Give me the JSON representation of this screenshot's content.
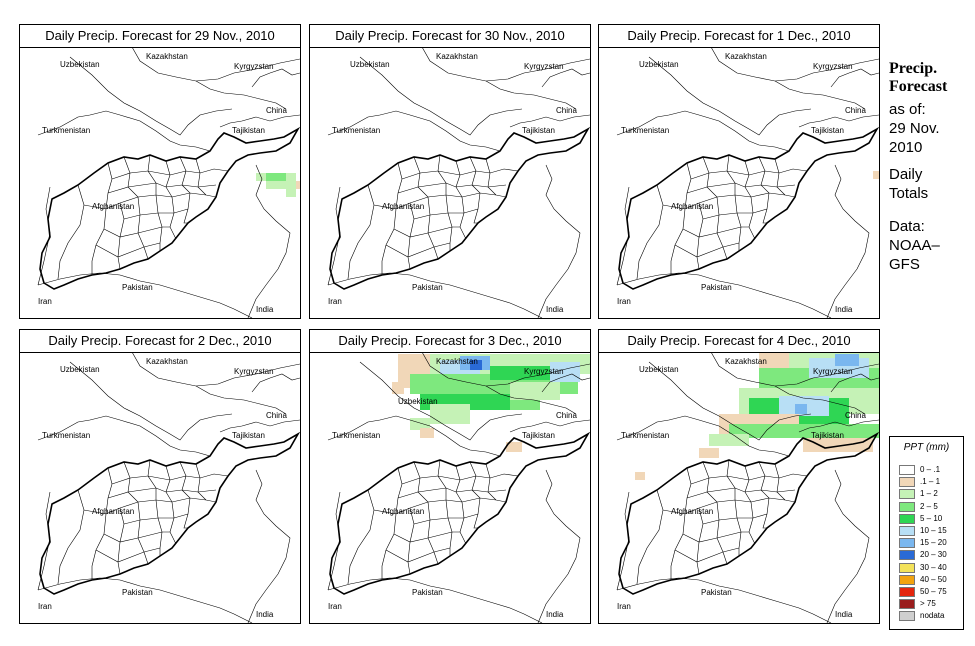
{
  "panels": [
    {
      "title": "Daily Precip. Forecast for  29 Nov., 2010"
    },
    {
      "title": "Daily Precip. Forecast for  30 Nov., 2010"
    },
    {
      "title": "Daily Precip. Forecast for  1 Dec., 2010"
    },
    {
      "title": "Daily Precip. Forecast for  2 Dec., 2010"
    },
    {
      "title": "Daily Precip. Forecast for  3 Dec., 2010"
    },
    {
      "title": "Daily Precip. Forecast for  4 Dec., 2010"
    }
  ],
  "map_labels": {
    "kazakhstan": "Kazakhstan",
    "uzbekistan": "Uzbekistan",
    "kyrgyzstan": "Kyrgyzstan",
    "china": "China",
    "turkmenistan": "Turkmenistan",
    "tajikistan": "Tajikistan",
    "afghanistan": "Afghanistan",
    "pakistan": "Pakistan",
    "iran": "Iran",
    "india": "India"
  },
  "sidebar": {
    "heading_line1": "Precip.",
    "heading_line2": "Forecast",
    "asof_label": "as of:",
    "date_line1": "29 Nov.",
    "date_line2": "2010",
    "totals_line1": "Daily",
    "totals_line2": "Totals",
    "data_line1": "Data:",
    "data_line2": "NOAA–",
    "data_line3": "GFS"
  },
  "legend": {
    "title": "PPT (mm)",
    "items": [
      {
        "label": "0 – .1",
        "color": "#ffffff"
      },
      {
        "label": ".1 – 1",
        "color": "#f1d7b8"
      },
      {
        "label": "1 – 2",
        "color": "#c5f2b6"
      },
      {
        "label": "2 – 5",
        "color": "#7ee87e"
      },
      {
        "label": "5 – 10",
        "color": "#2fd654"
      },
      {
        "label": "10 – 15",
        "color": "#b8dff5"
      },
      {
        "label": "15 – 20",
        "color": "#7ab7ef"
      },
      {
        "label": "20 – 30",
        "color": "#2a6ad6"
      },
      {
        "label": "30 – 40",
        "color": "#f3e25a"
      },
      {
        "label": "40 – 50",
        "color": "#f2a30f"
      },
      {
        "label": "50 – 75",
        "color": "#e4260e"
      },
      {
        "label": "> 75",
        "color": "#9a1d1d"
      },
      {
        "label": "nodata",
        "color": "#cfcfcf"
      }
    ]
  }
}
